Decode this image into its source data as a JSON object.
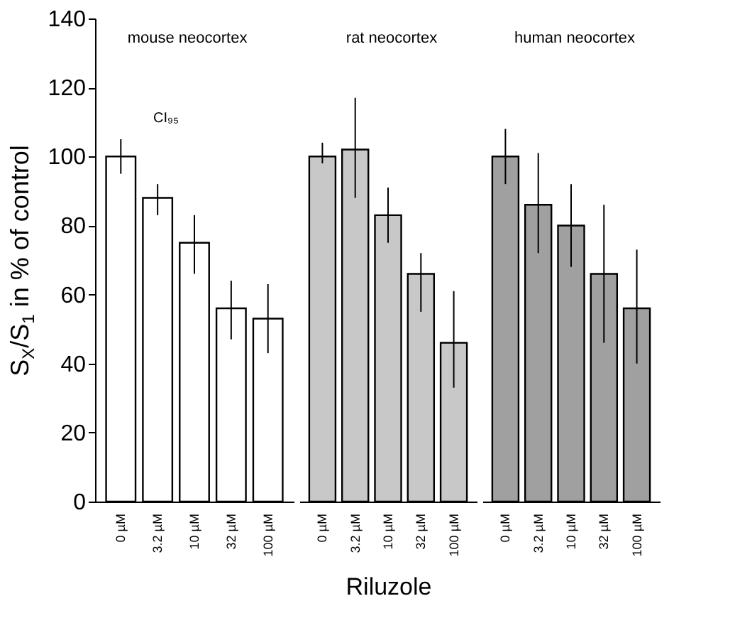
{
  "chart_data": [
    {
      "type": "bar",
      "title": "mouse neocortex",
      "ylabel": "S$_{X}$/S$_{1}$ in % of control",
      "categories": [
        "0 µM",
        "3.2 µM",
        "10 µM",
        "32 µM",
        "100 µM"
      ],
      "ylim": [
        0,
        140
      ],
      "yticks": [
        0,
        20,
        40,
        60,
        80,
        100,
        120,
        140
      ],
      "color": "#ffffff",
      "values": [
        100,
        88,
        75,
        56,
        53
      ],
      "errors": [
        [
          95,
          105
        ],
        [
          83,
          92
        ],
        [
          66,
          83
        ],
        [
          47,
          64
        ],
        [
          43,
          63
        ]
      ],
      "annotations": [
        "CI₉₅"
      ],
      "grid": false
    },
    {
      "type": "bar",
      "title": "rat neocortex",
      "xlabel": "Riluzole",
      "categories": [
        "0 µM",
        "3.2 µM",
        "10 µM",
        "32 µM",
        "100 µM"
      ],
      "ylim": [
        0,
        140
      ],
      "color": "#c8c8c8",
      "tick_labels": "x",
      "values": [
        100,
        102,
        83,
        66,
        46
      ],
      "errors": [
        [
          98,
          104
        ],
        [
          88,
          117
        ],
        [
          75,
          91
        ],
        [
          55,
          72
        ],
        [
          33,
          61
        ]
      ],
      "grid": false
    },
    {
      "type": "bar",
      "title": "human neocortex",
      "categories": [
        "0 µM",
        "3.2 µM",
        "10 µM",
        "32 µM",
        "100 µM"
      ],
      "ylim": [
        0,
        140
      ],
      "color": "#a0a0a0",
      "tick_labels": "x",
      "values": [
        100,
        86,
        80,
        66,
        56
      ],
      "errors": [
        [
          92,
          108
        ],
        [
          72,
          101
        ],
        [
          68,
          92
        ],
        [
          46,
          86
        ],
        [
          40,
          73
        ]
      ],
      "grid": false
    }
  ]
}
